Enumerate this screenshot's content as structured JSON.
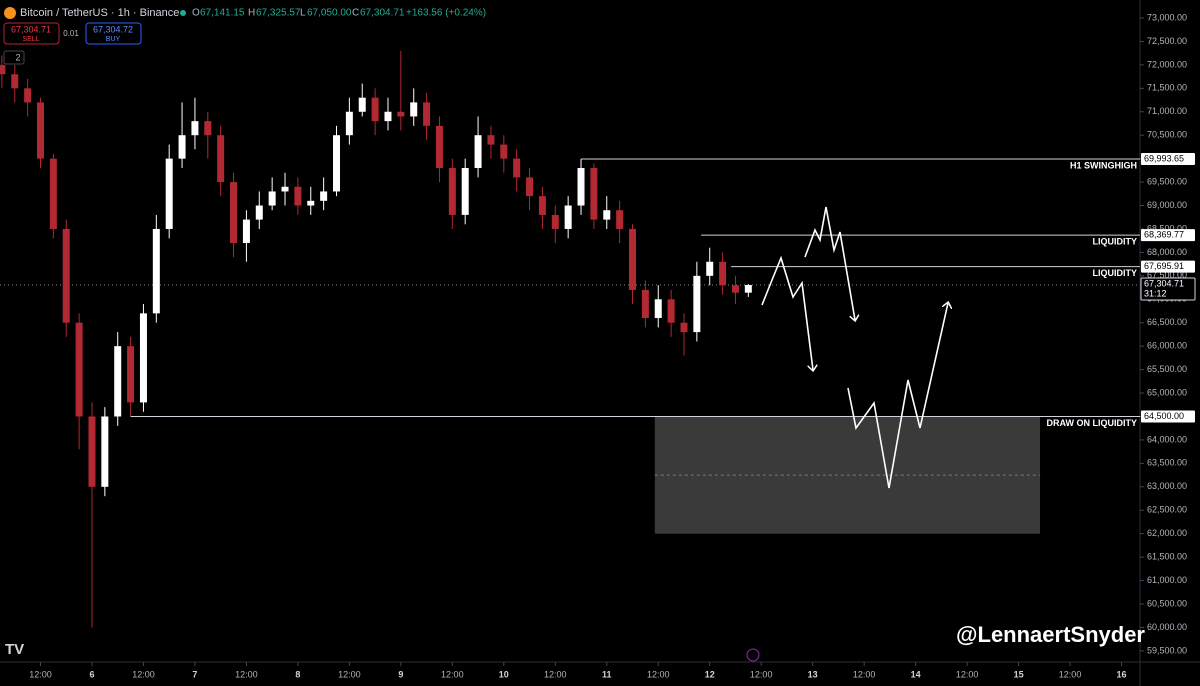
{
  "header": {
    "symbol": "Bitcoin / TetherUS · 1h · Binance",
    "o_label": "O",
    "open": "67,141.15",
    "h_label": "H",
    "high": "67,325.57",
    "l_label": "L",
    "low": "67,050.00",
    "c_label": "C",
    "close": "67,304.71",
    "change": "+163.56 (+0.24%)",
    "sell_price": "67,304.71",
    "sell": "SELL",
    "spread": "0.01",
    "buy_price": "67,304.72",
    "buy": "BUY",
    "indicators": "2"
  },
  "watermark": "@LennaertSnyder",
  "chart_data": {
    "type": "candlestick",
    "x": [
      3,
      6,
      9,
      12,
      15,
      18,
      21,
      24,
      27,
      30,
      33,
      36,
      39,
      42,
      45,
      48,
      51,
      54,
      57,
      60,
      63,
      66,
      69,
      72,
      75,
      78,
      81,
      84,
      87,
      90,
      93,
      96,
      99,
      102,
      105,
      108,
      111,
      114,
      117,
      120,
      123,
      126,
      129,
      132,
      135,
      138,
      141,
      144,
      147,
      150,
      153,
      156,
      159,
      162,
      165,
      168,
      171,
      174,
      177
    ],
    "open": [
      72000,
      71800,
      71500,
      71200,
      70000,
      68500,
      66500,
      64500,
      63000,
      64500,
      66000,
      64800,
      66700,
      68500,
      70000,
      70500,
      70800,
      70500,
      69500,
      68200,
      68700,
      69000,
      69300,
      69400,
      69000,
      69100,
      69300,
      70500,
      71000,
      71300,
      70800,
      71000,
      70900,
      71200,
      70700,
      69800,
      68800,
      69800,
      70500,
      70300,
      70000,
      69600,
      69200,
      68800,
      68500,
      69000,
      69800,
      68700,
      68900,
      68500,
      67200,
      66600,
      67000,
      66500,
      66300,
      67500,
      67800,
      67300,
      67141.15
    ],
    "high": [
      72200,
      72000,
      71700,
      71300,
      70100,
      68700,
      66700,
      64800,
      64700,
      66300,
      66200,
      66900,
      68800,
      70300,
      71200,
      71300,
      71000,
      70700,
      69700,
      68900,
      69300,
      69600,
      69700,
      69600,
      69400,
      69600,
      70700,
      71300,
      71600,
      71500,
      71300,
      72300,
      71500,
      71400,
      70900,
      70000,
      70000,
      70900,
      70700,
      70500,
      70200,
      69800,
      69400,
      69000,
      69200,
      69993.65,
      69900,
      69200,
      69100,
      68600,
      67400,
      67300,
      67200,
      66700,
      67800,
      68100,
      68000,
      67500,
      67325.57
    ],
    "low": [
      71500,
      71200,
      70900,
      69800,
      68300,
      66200,
      63800,
      60000,
      62800,
      64300,
      64500,
      64600,
      66500,
      68300,
      69800,
      70200,
      70000,
      69200,
      67900,
      67800,
      68500,
      68900,
      69000,
      68800,
      68800,
      68900,
      69200,
      70300,
      70900,
      70500,
      70600,
      70600,
      70700,
      70400,
      69500,
      68500,
      68600,
      69600,
      70000,
      69700,
      69300,
      68900,
      68500,
      68200,
      68300,
      68800,
      68500,
      68500,
      68200,
      66900,
      66400,
      66400,
      66200,
      65800,
      66100,
      67300,
      67100,
      66900,
      67050
    ],
    "close": [
      71800,
      71500,
      71200,
      70000,
      68500,
      66500,
      64500,
      63000,
      64500,
      66000,
      64800,
      66700,
      68500,
      70000,
      70500,
      70800,
      70500,
      69500,
      68200,
      68700,
      69000,
      69300,
      69400,
      69000,
      69100,
      69300,
      70500,
      71000,
      71300,
      70800,
      71000,
      70900,
      71200,
      70700,
      69800,
      68800,
      69800,
      70500,
      70300,
      70000,
      69600,
      69200,
      68800,
      68500,
      69000,
      69800,
      68700,
      68900,
      68500,
      67200,
      66600,
      67000,
      66500,
      66300,
      67500,
      67800,
      67300,
      67141.15,
      67304.71
    ],
    "up_color": "#ffffff",
    "down_color": "#b22833",
    "xlim": [
      2.56,
      268.3
    ],
    "xticks": [
      {
        "value": 12,
        "label": "12:00"
      },
      {
        "value": 24,
        "label": "6"
      },
      {
        "value": 36,
        "label": "12:00"
      },
      {
        "value": 48,
        "label": "7"
      },
      {
        "value": 60,
        "label": "12:00"
      },
      {
        "value": 72,
        "label": "8"
      },
      {
        "value": 84,
        "label": "12:00"
      },
      {
        "value": 96,
        "label": "9"
      },
      {
        "value": 108,
        "label": "12:00"
      },
      {
        "value": 120,
        "label": "10"
      },
      {
        "value": 132,
        "label": "12:00"
      },
      {
        "value": 144,
        "label": "11"
      },
      {
        "value": 156,
        "label": "12:00"
      },
      {
        "value": 168,
        "label": "12"
      },
      {
        "value": 180,
        "label": "12:00"
      },
      {
        "value": 192,
        "label": "13"
      },
      {
        "value": 204,
        "label": "12:00"
      },
      {
        "value": 216,
        "label": "14"
      },
      {
        "value": 228,
        "label": "12:00"
      },
      {
        "value": 240,
        "label": "15"
      },
      {
        "value": 252,
        "label": "12:00"
      },
      {
        "value": 264,
        "label": "16"
      }
    ],
    "ylim": [
      59263,
      73384
    ],
    "yticks": [
      {
        "value": 59500,
        "label": "59,500.00"
      },
      {
        "value": 60000,
        "label": "60,000.00"
      },
      {
        "value": 60500,
        "label": "60,500.00"
      },
      {
        "value": 61000,
        "label": "61,000.00"
      },
      {
        "value": 61500,
        "label": "61,500.00"
      },
      {
        "value": 62000,
        "label": "62,000.00"
      },
      {
        "value": 62500,
        "label": "62,500.00"
      },
      {
        "value": 63000,
        "label": "63,000.00"
      },
      {
        "value": 63500,
        "label": "63,500.00"
      },
      {
        "value": 64000,
        "label": "64,000.00"
      },
      {
        "value": 64500,
        "label": "64,500.00"
      },
      {
        "value": 65000,
        "label": "65,000.00"
      },
      {
        "value": 65500,
        "label": "65,500.00"
      },
      {
        "value": 66000,
        "label": "66,000.00"
      },
      {
        "value": 66500,
        "label": "66,500.00"
      },
      {
        "value": 67000,
        "label": "67,000.00"
      },
      {
        "value": 67500,
        "label": "67,500.00"
      },
      {
        "value": 68000,
        "label": "68,000.00"
      },
      {
        "value": 68500,
        "label": "68,500.00"
      },
      {
        "value": 69000,
        "label": "69,000.00"
      },
      {
        "value": 69500,
        "label": "69,500.00"
      },
      {
        "value": 70000,
        "label": "70,000.00"
      },
      {
        "value": 70500,
        "label": "70,500.00"
      },
      {
        "value": 71000,
        "label": "71,000.00"
      },
      {
        "value": 71500,
        "label": "71,500.00"
      },
      {
        "value": 72000,
        "label": "72,000.00"
      },
      {
        "value": 72500,
        "label": "72,500.00"
      },
      {
        "value": 73000,
        "label": "73,000.00"
      }
    ],
    "levels": [
      {
        "name": "H1 SWINGHIGH",
        "value": 69993.65,
        "label": "69,993.65",
        "start": 138
      },
      {
        "name": "LIQUIDITY",
        "value": 68369.77,
        "label": "68,369.77",
        "start": 166
      },
      {
        "name": "LIQUIDITY",
        "value": 67695.91,
        "label": "67,695.91",
        "start": 173
      },
      {
        "name": "DRAW ON LIQUIDITY",
        "value": 64500,
        "label": "64,500.00",
        "start": 33
      }
    ],
    "current": {
      "value": 67304.71,
      "label": "67,304.71",
      "countdown": "31:12"
    },
    "zone": {
      "top": 64500,
      "bottom": 62000,
      "mid": 63250,
      "start": 155.2,
      "end": 245
    }
  }
}
